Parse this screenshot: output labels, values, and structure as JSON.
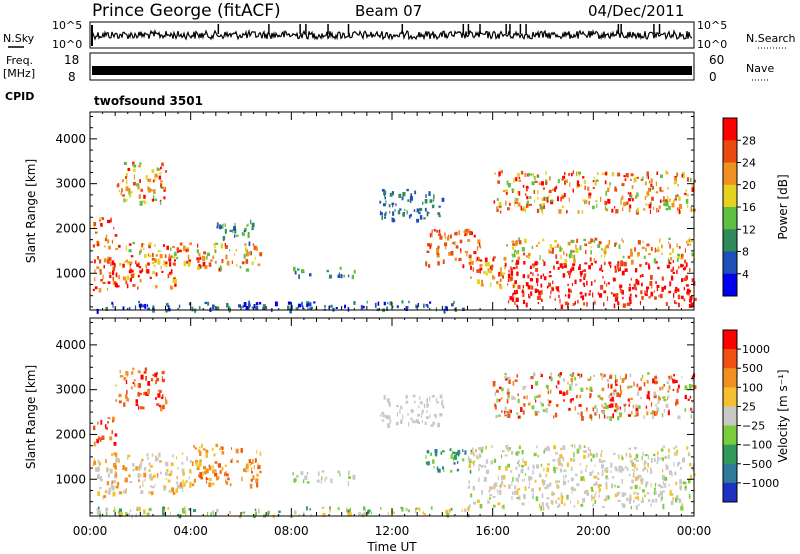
{
  "header": {
    "station": "Prince George (fitACF)",
    "beam": "Beam 07",
    "date": "04/Dec/2011"
  },
  "strips": {
    "nsky_label": "N.Sky",
    "nsky_ticks": [
      "10^5",
      "10^0"
    ],
    "nsearch_label": "N.Search",
    "nsearch_ticks": [
      "10^5",
      "10^0"
    ],
    "freq_label_1": "Freq.",
    "freq_label_2": "[MHz]",
    "freq_ticks": [
      "18",
      "8"
    ],
    "nave_label": "Nave",
    "nave_ticks": [
      "60",
      "0"
    ],
    "cpid_label": "CPID",
    "cpid_value": "twofsound 3501"
  },
  "chart_data": [
    {
      "type": "heatmap",
      "panel": "power",
      "ylabel": "Slant Range [km]",
      "yticks": [
        1000,
        2000,
        3000,
        4000
      ],
      "ylim": [
        180,
        4600
      ],
      "xlim_hours": [
        0,
        24
      ],
      "xticks": [
        "00:00",
        "04:00",
        "08:00",
        "12:00",
        "16:00",
        "20:00",
        "00:00"
      ],
      "colorbar": {
        "label": "Power [dB]",
        "ticks": [
          "4",
          "8",
          "12",
          "16",
          "20",
          "24",
          "28"
        ],
        "colors": [
          "#0000ee",
          "#1f4fb8",
          "#2f8a5c",
          "#5fbf3f",
          "#e6d21e",
          "#f09020",
          "#e84a10",
          "#ff0000"
        ],
        "range": [
          0,
          32
        ]
      }
    },
    {
      "type": "heatmap",
      "panel": "velocity",
      "ylabel": "Slant Range [km]",
      "yticks": [
        1000,
        2000,
        3000,
        4000
      ],
      "ylim": [
        180,
        4600
      ],
      "xlim_hours": [
        0,
        24
      ],
      "xticks": [
        "00:00",
        "04:00",
        "08:00",
        "12:00",
        "16:00",
        "20:00",
        "00:00"
      ],
      "xlabel": "Time UT",
      "colorbar": {
        "label": "Velocity [m s⁻¹]",
        "ticks": [
          "1000",
          "500",
          "100",
          "25",
          "−25",
          "−100",
          "−500",
          "−1000"
        ],
        "colors": [
          "#2030c0",
          "#2f7a9a",
          "#2f9a5a",
          "#7acc3a",
          "#c8c8c8",
          "#f5c030",
          "#f09020",
          "#f05010",
          "#ff0000"
        ]
      }
    }
  ]
}
